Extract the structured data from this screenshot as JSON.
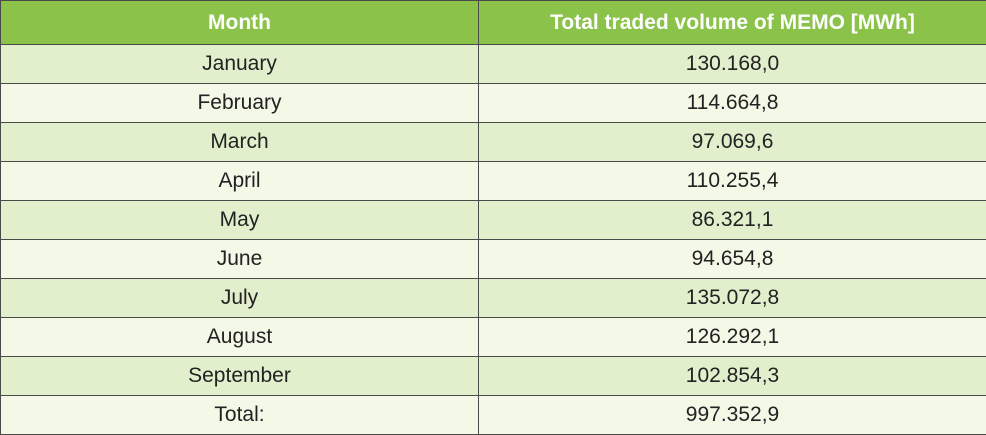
{
  "table": {
    "headers": [
      "Month",
      "Total traded volume of MEMO [MWh]"
    ],
    "rows": [
      [
        "January",
        "130.168,0"
      ],
      [
        "February",
        "114.664,8"
      ],
      [
        "March",
        "97.069,6"
      ],
      [
        "April",
        "110.255,4"
      ],
      [
        "May",
        "86.321,1"
      ],
      [
        "June",
        "94.654,8"
      ],
      [
        "July",
        "135.072,8"
      ],
      [
        "August",
        "126.292,1"
      ],
      [
        "September",
        "102.854,3"
      ],
      [
        "Total:",
        "997.352,9"
      ]
    ]
  },
  "colors": {
    "header_bg": "#8bc24a",
    "header_text": "#ffffff",
    "row_tint_a": "#e2efcc",
    "row_tint_b": "#f3f8e7",
    "border": "#4a4a4a"
  }
}
